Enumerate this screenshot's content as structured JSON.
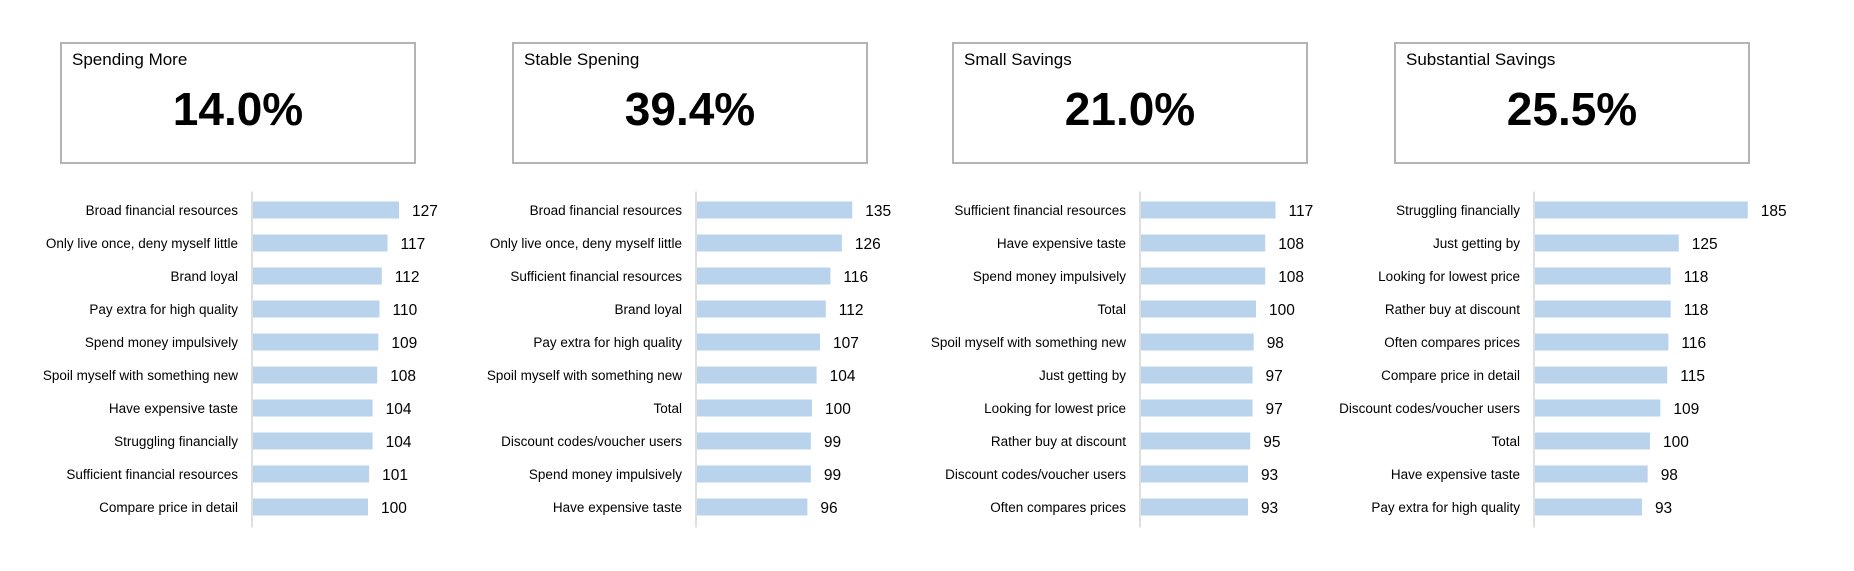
{
  "colors": {
    "bar": "#b9d3ec",
    "axis": "#bfbfbf",
    "box_border": "#b4b4b4"
  },
  "panels": [
    {
      "title": "Spending More",
      "value": "14.0%"
    },
    {
      "title": "Stable Spening",
      "value": "39.4%"
    },
    {
      "title": "Small Savings",
      "value": "21.0%"
    },
    {
      "title": "Substantial Savings",
      "value": "25.5%"
    }
  ],
  "chart_data": [
    {
      "type": "bar",
      "orientation": "horizontal",
      "categories": [
        "Broad financial resources",
        "Only live once, deny myself little",
        "Brand loyal",
        "Pay extra for high quality",
        "Spend money impulsively",
        "Spoil myself with something new",
        "Have expensive taste",
        "Struggling financially",
        "Sufficient financial resources",
        "Compare price in detail"
      ],
      "values": [
        127,
        117,
        112,
        110,
        109,
        108,
        104,
        104,
        101,
        100
      ],
      "xlim": [
        0,
        190
      ],
      "grid": false,
      "data_labels": true
    },
    {
      "type": "bar",
      "orientation": "horizontal",
      "categories": [
        "Broad financial resources",
        "Only live once, deny myself little",
        "Sufficient financial resources",
        "Brand loyal",
        "Pay extra for high quality",
        "Spoil myself with something new",
        "Total",
        "Discount codes/voucher users",
        "Spend money impulsively",
        "Have expensive taste"
      ],
      "values": [
        135,
        126,
        116,
        112,
        107,
        104,
        100,
        99,
        99,
        96
      ],
      "xlim": [
        0,
        190
      ],
      "grid": false,
      "data_labels": true
    },
    {
      "type": "bar",
      "orientation": "horizontal",
      "categories": [
        "Sufficient financial resources",
        "Have expensive taste",
        "Spend money impulsively",
        "Total",
        "Spoil myself with something new",
        "Just getting by",
        "Looking for lowest price",
        "Rather buy at discount",
        "Discount codes/voucher users",
        "Often compares prices"
      ],
      "values": [
        117,
        108,
        108,
        100,
        98,
        97,
        97,
        95,
        93,
        93
      ],
      "xlim": [
        0,
        190
      ],
      "grid": false,
      "data_labels": true
    },
    {
      "type": "bar",
      "orientation": "horizontal",
      "categories": [
        "Struggling financially",
        "Just getting by",
        "Looking for lowest price",
        "Rather buy at discount",
        "Often compares prices",
        "Compare price in detail",
        "Discount codes/voucher users",
        "Total",
        "Have expensive taste",
        "Pay extra for high quality"
      ],
      "values": [
        185,
        125,
        118,
        118,
        116,
        115,
        109,
        100,
        98,
        93
      ],
      "xlim": [
        0,
        190
      ],
      "grid": false,
      "data_labels": true
    }
  ]
}
